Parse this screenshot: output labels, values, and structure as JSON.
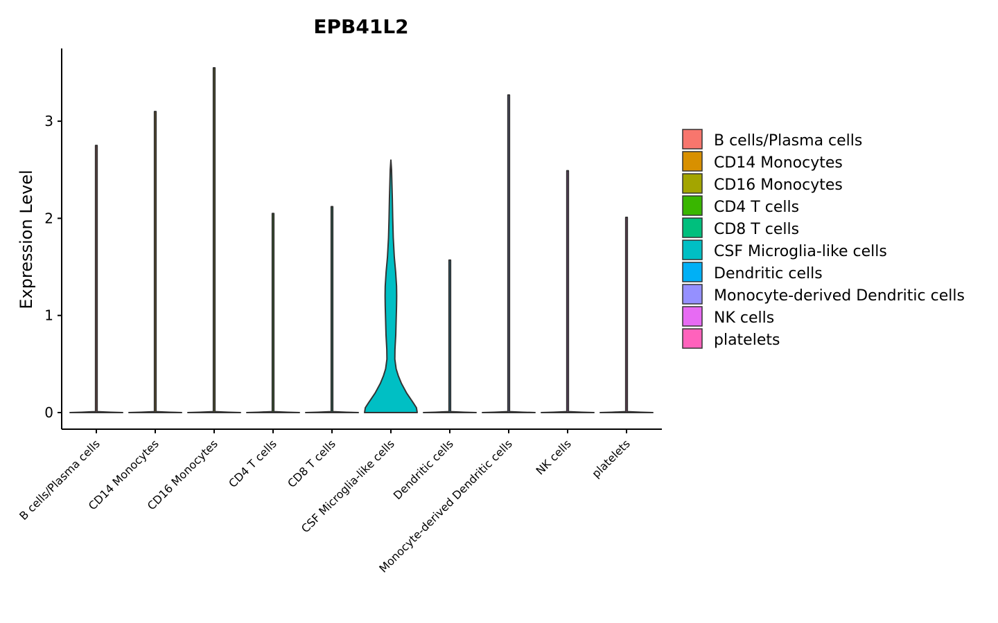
{
  "chart_data": {
    "type": "violin",
    "title": "EPB41L2",
    "xlabel": "",
    "ylabel": "Expression Level",
    "ylim": [
      -0.18,
      3.75
    ],
    "yticks": [
      0,
      1,
      2,
      3
    ],
    "categories": [
      "B cells/Plasma cells",
      "CD14 Monocytes",
      "CD16 Monocytes",
      "CD4 T cells",
      "CD8 T cells",
      "CSF Microglia-like cells",
      "Dendritic cells",
      "Monocyte-derived Dendritic cells",
      "NK cells",
      "platelets"
    ],
    "max_values": [
      2.75,
      3.1,
      3.55,
      2.05,
      2.12,
      2.6,
      1.57,
      3.27,
      2.49,
      2.01
    ],
    "density_profiles": [
      [
        [
          0,
          1.0
        ],
        [
          0.004,
          0.55
        ],
        [
          0.01,
          0.03
        ],
        [
          2.75,
          0.03
        ]
      ],
      [
        [
          0,
          1.0
        ],
        [
          0.004,
          0.55
        ],
        [
          0.01,
          0.03
        ],
        [
          3.1,
          0.03
        ]
      ],
      [
        [
          0,
          1.0
        ],
        [
          0.004,
          0.55
        ],
        [
          0.01,
          0.03
        ],
        [
          3.55,
          0.03
        ]
      ],
      [
        [
          0,
          1.0
        ],
        [
          0.004,
          0.55
        ],
        [
          0.01,
          0.03
        ],
        [
          2.05,
          0.03
        ]
      ],
      [
        [
          0,
          1.0
        ],
        [
          0.004,
          0.55
        ],
        [
          0.01,
          0.03
        ],
        [
          2.12,
          0.03
        ]
      ],
      [
        [
          0,
          1.0
        ],
        [
          0.05,
          0.97
        ],
        [
          0.1,
          0.85
        ],
        [
          0.2,
          0.6
        ],
        [
          0.3,
          0.4
        ],
        [
          0.38,
          0.28
        ],
        [
          0.45,
          0.2
        ],
        [
          0.55,
          0.15
        ],
        [
          0.65,
          0.155
        ],
        [
          0.8,
          0.185
        ],
        [
          0.95,
          0.2
        ],
        [
          1.1,
          0.215
        ],
        [
          1.2,
          0.22
        ],
        [
          1.3,
          0.215
        ],
        [
          1.45,
          0.18
        ],
        [
          1.6,
          0.13
        ],
        [
          1.8,
          0.09
        ],
        [
          2.0,
          0.07
        ],
        [
          2.2,
          0.055
        ],
        [
          2.35,
          0.04
        ],
        [
          2.5,
          0.025
        ],
        [
          2.6,
          0.0
        ]
      ],
      [
        [
          0,
          1.0
        ],
        [
          0.004,
          0.55
        ],
        [
          0.01,
          0.03
        ],
        [
          1.57,
          0.03
        ]
      ],
      [
        [
          0,
          1.0
        ],
        [
          0.004,
          0.55
        ],
        [
          0.01,
          0.03
        ],
        [
          3.27,
          0.03
        ]
      ],
      [
        [
          0,
          1.0
        ],
        [
          0.004,
          0.55
        ],
        [
          0.01,
          0.03
        ],
        [
          2.49,
          0.03
        ]
      ],
      [
        [
          0,
          1.0
        ],
        [
          0.004,
          0.55
        ],
        [
          0.01,
          0.03
        ],
        [
          2.01,
          0.03
        ]
      ]
    ],
    "colors": [
      "#F8766D",
      "#D89000",
      "#A3A500",
      "#39B600",
      "#00BF7D",
      "#00BFC4",
      "#00B0F6",
      "#9590FF",
      "#E76BF3",
      "#FF62BC"
    ],
    "legend": {
      "position": "right",
      "entries": [
        "B cells/Plasma cells",
        "CD14 Monocytes",
        "CD16 Monocytes",
        "CD4 T cells",
        "CD8 T cells",
        "CSF Microglia-like cells",
        "Dendritic cells",
        "Monocyte-derived Dendritic cells",
        "NK cells",
        "platelets"
      ]
    },
    "grid": false
  }
}
